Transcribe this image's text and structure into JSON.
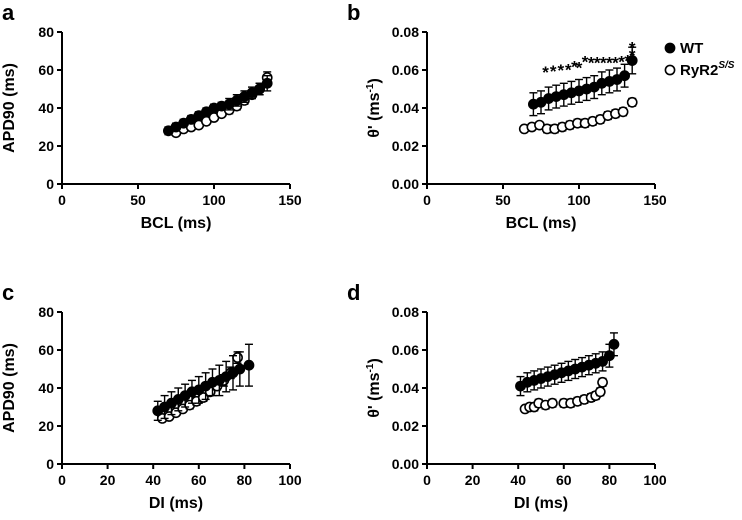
{
  "chart_data": [
    {
      "id": "a",
      "type": "scatter",
      "panel_letter": "a",
      "xlabel": "BCL (ms)",
      "ylabel": "APD90 (ms)",
      "xlim": [
        0,
        150
      ],
      "ylim": [
        0,
        80
      ],
      "xticks": [
        0,
        50,
        100,
        150
      ],
      "yticks": [
        0,
        20,
        40,
        60,
        80
      ],
      "xtick_labels": [
        "0",
        "50",
        "100",
        "150"
      ],
      "ytick_labels": [
        "0",
        "20",
        "40",
        "60",
        "80"
      ],
      "series": [
        {
          "name": "WT",
          "marker": "filled",
          "x": [
            70,
            75,
            80,
            85,
            90,
            95,
            100,
            105,
            110,
            115,
            120,
            125,
            130,
            135
          ],
          "y": [
            28,
            30,
            32,
            34,
            36,
            38,
            40,
            41,
            42,
            44,
            46,
            48,
            50,
            53
          ],
          "err": [
            2,
            2,
            2,
            2,
            2,
            2,
            2,
            2,
            3,
            3,
            3,
            3,
            3,
            4
          ]
        },
        {
          "name": "RyR2S/S",
          "marker": "open",
          "x": [
            75,
            80,
            85,
            90,
            95,
            100,
            105,
            110,
            115,
            120,
            125,
            130,
            135
          ],
          "y": [
            27,
            29,
            30,
            31,
            33,
            35,
            37,
            39,
            41,
            44,
            47,
            50,
            56
          ],
          "err": [
            1,
            1,
            1,
            1,
            1,
            1,
            1,
            2,
            2,
            2,
            2,
            3,
            3
          ]
        }
      ]
    },
    {
      "id": "b",
      "type": "scatter",
      "panel_letter": "b",
      "xlabel": "BCL (ms)",
      "ylabel": "θ' (ms",
      "ylabel_sup": "-1",
      "ylabel_end": ")",
      "xlim": [
        0,
        150
      ],
      "ylim": [
        0,
        0.08
      ],
      "xticks": [
        0,
        50,
        100,
        150
      ],
      "yticks": [
        0,
        0.02,
        0.04,
        0.06,
        0.08
      ],
      "xtick_labels": [
        "0",
        "50",
        "100",
        "150"
      ],
      "ytick_labels": [
        "0.00",
        "0.02",
        "0.04",
        "0.06",
        "0.08"
      ],
      "series": [
        {
          "name": "WT",
          "marker": "filled",
          "x": [
            70,
            75,
            80,
            85,
            90,
            95,
            100,
            105,
            110,
            115,
            120,
            125,
            130,
            135
          ],
          "y": [
            0.042,
            0.043,
            0.045,
            0.046,
            0.047,
            0.048,
            0.049,
            0.05,
            0.051,
            0.053,
            0.054,
            0.055,
            0.057,
            0.065
          ],
          "err": [
            0.006,
            0.006,
            0.006,
            0.006,
            0.006,
            0.006,
            0.006,
            0.006,
            0.006,
            0.006,
            0.006,
            0.006,
            0.006,
            0.007
          ]
        },
        {
          "name": "RyR2S/S",
          "marker": "open",
          "x": [
            64,
            69,
            74,
            79,
            84,
            89,
            94,
            99,
            104,
            109,
            114,
            119,
            124,
            129,
            135
          ],
          "y": [
            0.029,
            0.03,
            0.031,
            0.029,
            0.029,
            0.03,
            0.031,
            0.032,
            0.032,
            0.033,
            0.034,
            0.036,
            0.037,
            0.038,
            0.043
          ],
          "err": [
            0.001,
            0.001,
            0.001,
            0.002,
            0.002,
            0.002,
            0.002,
            0.002,
            0.002,
            0.002,
            0.002,
            0.002,
            0.002,
            0.002,
            0.002
          ]
        }
      ],
      "annotations": [
        {
          "text": "*",
          "x": 78,
          "y": 0.061
        },
        {
          "text": "*",
          "x": 83,
          "y": 0.0615
        },
        {
          "text": "*",
          "x": 88,
          "y": 0.062
        },
        {
          "text": "*",
          "x": 93,
          "y": 0.0625
        },
        {
          "text": "*",
          "x": 97,
          "y": 0.064
        },
        {
          "text": "*",
          "x": 100,
          "y": 0.0635
        },
        {
          "text": "*",
          "x": 104,
          "y": 0.0665
        },
        {
          "text": "*",
          "x": 108,
          "y": 0.066
        },
        {
          "text": "*",
          "x": 112,
          "y": 0.066
        },
        {
          "text": "*",
          "x": 116,
          "y": 0.066
        },
        {
          "text": "*",
          "x": 120,
          "y": 0.066
        },
        {
          "text": "*",
          "x": 124,
          "y": 0.066
        },
        {
          "text": "*",
          "x": 128,
          "y": 0.0665
        },
        {
          "text": "*",
          "x": 132,
          "y": 0.067
        },
        {
          "text": "*",
          "x": 135,
          "y": 0.074
        },
        {
          "text": "*",
          "x": 135,
          "y": 0.07
        }
      ],
      "legend": [
        {
          "label": "WT",
          "marker": "filled"
        },
        {
          "label": "RyR2",
          "sup": "S/S",
          "marker": "open"
        }
      ]
    },
    {
      "id": "c",
      "type": "scatter",
      "panel_letter": "c",
      "xlabel": "DI (ms)",
      "ylabel": "APD90 (ms)",
      "xlim": [
        0,
        100
      ],
      "ylim": [
        0,
        80
      ],
      "xticks": [
        0,
        20,
        40,
        60,
        80,
        100
      ],
      "yticks": [
        0,
        20,
        40,
        60,
        80
      ],
      "xtick_labels": [
        "0",
        "20",
        "40",
        "60",
        "80",
        "100"
      ],
      "ytick_labels": [
        "0",
        "20",
        "40",
        "60",
        "80"
      ],
      "series": [
        {
          "name": "WT",
          "marker": "filled",
          "x": [
            42,
            45,
            48,
            51,
            54,
            57,
            60,
            63,
            66,
            69,
            72,
            75,
            78,
            82
          ],
          "y": [
            28,
            30,
            32,
            34,
            36,
            38,
            39,
            41,
            43,
            44,
            46,
            48,
            50,
            52
          ],
          "err": [
            5,
            6,
            6,
            6,
            6,
            6,
            7,
            7,
            7,
            8,
            8,
            9,
            9,
            11
          ]
        },
        {
          "name": "RyR2S/S",
          "marker": "open",
          "x": [
            44,
            47,
            50,
            53,
            56,
            59,
            62,
            65,
            68,
            71,
            74,
            77
          ],
          "y": [
            24,
            25,
            27,
            29,
            31,
            33,
            35,
            38,
            41,
            44,
            48,
            56
          ],
          "err": [
            1,
            1,
            1,
            1,
            2,
            2,
            2,
            2,
            2,
            3,
            3,
            3
          ]
        }
      ]
    },
    {
      "id": "d",
      "type": "scatter",
      "panel_letter": "d",
      "xlabel": "DI (ms)",
      "ylabel": "θ' (ms",
      "ylabel_sup": "-1",
      "ylabel_end": ")",
      "xlim": [
        0,
        100
      ],
      "ylim": [
        0,
        0.08
      ],
      "xticks": [
        0,
        20,
        40,
        60,
        80,
        100
      ],
      "yticks": [
        0,
        0.02,
        0.04,
        0.06,
        0.08
      ],
      "xtick_labels": [
        "0",
        "20",
        "40",
        "60",
        "80",
        "100"
      ],
      "ytick_labels": [
        "0.00",
        "0.02",
        "0.04",
        "0.06",
        "0.08"
      ],
      "series": [
        {
          "name": "WT",
          "marker": "filled",
          "x": [
            41,
            44,
            47,
            50,
            53,
            56,
            59,
            62,
            65,
            68,
            71,
            74,
            77,
            80,
            82
          ],
          "y": [
            0.041,
            0.043,
            0.044,
            0.045,
            0.046,
            0.047,
            0.048,
            0.049,
            0.05,
            0.051,
            0.052,
            0.053,
            0.054,
            0.057,
            0.063
          ],
          "err": [
            0.005,
            0.005,
            0.005,
            0.005,
            0.005,
            0.005,
            0.005,
            0.005,
            0.005,
            0.005,
            0.005,
            0.005,
            0.005,
            0.006,
            0.006
          ]
        },
        {
          "name": "RyR2S/S",
          "marker": "open",
          "x": [
            43,
            45,
            47,
            49,
            52,
            55,
            60,
            63,
            66,
            69,
            72,
            74,
            76,
            77
          ],
          "y": [
            0.029,
            0.03,
            0.03,
            0.032,
            0.031,
            0.032,
            0.032,
            0.032,
            0.033,
            0.034,
            0.035,
            0.036,
            0.038,
            0.043
          ],
          "err": [
            0.001,
            0.001,
            0.002,
            0.002,
            0.002,
            0.002,
            0.002,
            0.002,
            0.002,
            0.002,
            0.002,
            0.002,
            0.002,
            0.002
          ]
        }
      ]
    }
  ]
}
